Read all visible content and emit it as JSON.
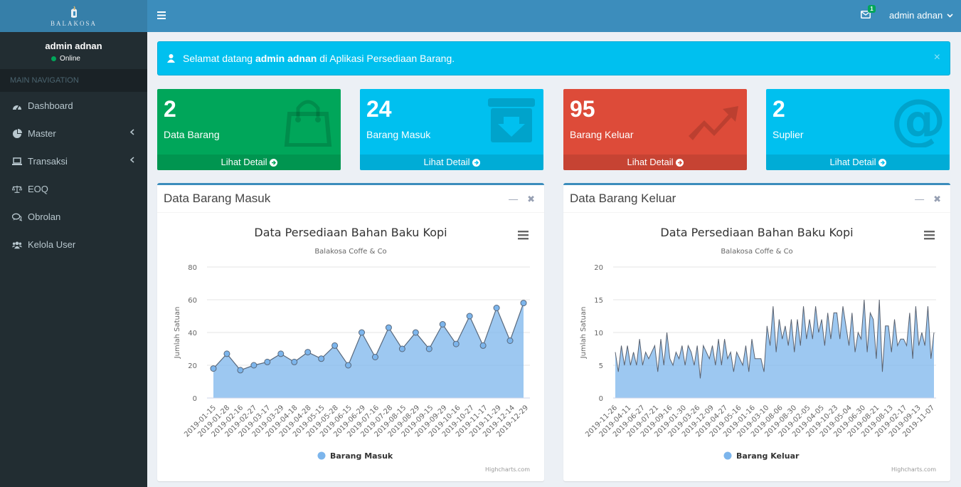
{
  "brand": {
    "logo_text": "BALAKOSA"
  },
  "sidebar": {
    "user_name": "admin adnan",
    "status": "Online",
    "nav_header": "MAIN NAVIGATION",
    "items": [
      {
        "label": "Dashboard",
        "icon": "dashboard-icon"
      },
      {
        "label": "Master",
        "icon": "pie-chart-icon"
      },
      {
        "label": "Transaksi",
        "icon": "laptop-icon"
      },
      {
        "label": "EOQ",
        "icon": "balance-scale-icon"
      },
      {
        "label": "Obrolan",
        "icon": "comments-icon"
      },
      {
        "label": "Kelola User",
        "icon": "users-icon"
      }
    ]
  },
  "header": {
    "mail_count": "1",
    "user_name": "admin adnan"
  },
  "alert": {
    "prefix": "Selamat datang",
    "user": "admin adnan",
    "suffix": "di Aplikasi Persediaan Barang.",
    "close": "×"
  },
  "boxes": [
    {
      "number": "2",
      "label": "Data Barang",
      "footer": "Lihat Detail",
      "color": "#00a65a",
      "icon": "shopping-bag-icon"
    },
    {
      "number": "24",
      "label": "Barang Masuk",
      "footer": "Lihat Detail",
      "color": "#00c0ef",
      "icon": "archive-download-icon"
    },
    {
      "number": "95",
      "label": "Barang Keluar",
      "footer": "Lihat Detail",
      "color": "#dd4b39",
      "icon": "trend-up-icon"
    },
    {
      "number": "2",
      "label": "Suplier",
      "footer": "Lihat Detail",
      "color": "#00c0ef",
      "icon": "at-icon"
    }
  ],
  "panels": [
    {
      "title": "Data Barang Masuk"
    },
    {
      "title": "Data Barang Keluar"
    }
  ],
  "chart_data": [
    {
      "type": "area",
      "title": "Data Persediaan Bahan Baku Kopi",
      "subtitle": "Balakosa Coffe & Co",
      "ylabel": "Jumlah Satuan",
      "ylim": [
        0,
        80
      ],
      "yticks": [
        0,
        20,
        40,
        60,
        80
      ],
      "grid": true,
      "legend": "bottom-center",
      "credits": "Highcharts.com",
      "categories": [
        "2019-01-15",
        "2019-01-28",
        "2019-02-16",
        "2019-02-27",
        "2019-03-17",
        "2019-03-29",
        "2019-04-18",
        "2019-04-28",
        "2019-05-15",
        "2019-05-28",
        "2019-06-15",
        "2019-06-29",
        "2019-07-16",
        "2019-07-28",
        "2019-08-15",
        "2019-08-29",
        "2019-09-15",
        "2019-09-29",
        "2019-10-16",
        "2019-10-27",
        "2019-11-17",
        "2019-11-29",
        "2019-12-14",
        "2019-12-29"
      ],
      "series": [
        {
          "name": "Barang Masuk",
          "color": "#7cb5ec",
          "values": [
            18,
            27,
            17,
            20,
            22,
            27,
            22,
            28,
            24,
            32,
            20,
            40,
            25,
            43,
            30,
            40,
            30,
            45,
            33,
            50,
            32,
            55,
            35,
            58
          ]
        }
      ]
    },
    {
      "type": "area",
      "title": "Data Persediaan Bahan Baku Kopi",
      "subtitle": "Balakosa Coffe & Co",
      "ylabel": "Jumlah Satuan",
      "ylim": [
        0,
        20
      ],
      "yticks": [
        0,
        5,
        10,
        15,
        20
      ],
      "grid": true,
      "legend": "bottom-center",
      "credits": "Highcharts.com",
      "tick_labels": [
        "2019-11-26",
        "2019-04-11",
        "2019-06-27",
        "2019-07-21",
        "2019-09-16",
        "2019-01-30",
        "2019-03-26",
        "2019-12-09",
        "2019-04-27",
        "2019-05-16",
        "2019-01-16",
        "2019-03-10",
        "2019-08-06",
        "2019-08-30",
        "2019-02-05",
        "2019-04-05",
        "2019-10-23",
        "2019-05-04",
        "2019-06-30",
        "2019-08-21",
        "2019-08-13",
        "2019-02-17",
        "2019-09-13",
        "2019-11-07"
      ],
      "series": [
        {
          "name": "Barang Keluar",
          "color": "#7cb5ec",
          "values": [
            7,
            4,
            8,
            5,
            8,
            5,
            7,
            5,
            9,
            5,
            7,
            6,
            7,
            8,
            4,
            9,
            5,
            10,
            6,
            5,
            7,
            6,
            8,
            5,
            8,
            7,
            5,
            8,
            3,
            8,
            7,
            6,
            8,
            5,
            9,
            5,
            9,
            6,
            7,
            4,
            7,
            6,
            5,
            8,
            4,
            9,
            6,
            6,
            6,
            4,
            11,
            8,
            14,
            7,
            12,
            9,
            11,
            8,
            12,
            7,
            12,
            8,
            14,
            9,
            12,
            9,
            14,
            10,
            12,
            8,
            13,
            9,
            13,
            13,
            9,
            14,
            11,
            8,
            13,
            7,
            10,
            9,
            15,
            7,
            13,
            12,
            6,
            15,
            4,
            11,
            11,
            7,
            12,
            8,
            9,
            9,
            8,
            13,
            6,
            14,
            8,
            10,
            8,
            14,
            6,
            10
          ]
        }
      ]
    }
  ]
}
